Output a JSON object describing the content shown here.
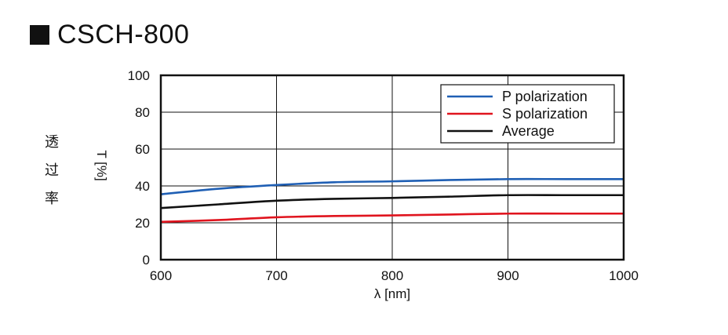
{
  "title": "CSCH-800",
  "ylabel_chars": [
    "透",
    "过",
    "率"
  ],
  "chart_data": {
    "type": "line",
    "title": "CSCH-800",
    "xlabel": "λ  [nm]",
    "ylabel": "T [%]",
    "xlim": [
      600,
      1000
    ],
    "ylim": [
      0,
      100
    ],
    "xticks": [
      600,
      700,
      800,
      900,
      1000
    ],
    "yticks": [
      0,
      20,
      40,
      60,
      80,
      100
    ],
    "grid": true,
    "legend_position": "top-right",
    "x": [
      600,
      650,
      700,
      750,
      800,
      850,
      900,
      950,
      1000
    ],
    "series": [
      {
        "name": "P polarization",
        "color": "#1f5fb4",
        "values": [
          35.5,
          38.5,
          40.5,
          42,
          42.5,
          43.2,
          43.7,
          43.7,
          43.7
        ]
      },
      {
        "name": "S polarization",
        "color": "#e0141e",
        "values": [
          20.5,
          21.5,
          23,
          23.7,
          24,
          24.5,
          25,
          25,
          25
        ]
      },
      {
        "name": "Average",
        "color": "#111111",
        "values": [
          28,
          30,
          32,
          33,
          33.5,
          34.2,
          35,
          35,
          35
        ]
      }
    ]
  }
}
